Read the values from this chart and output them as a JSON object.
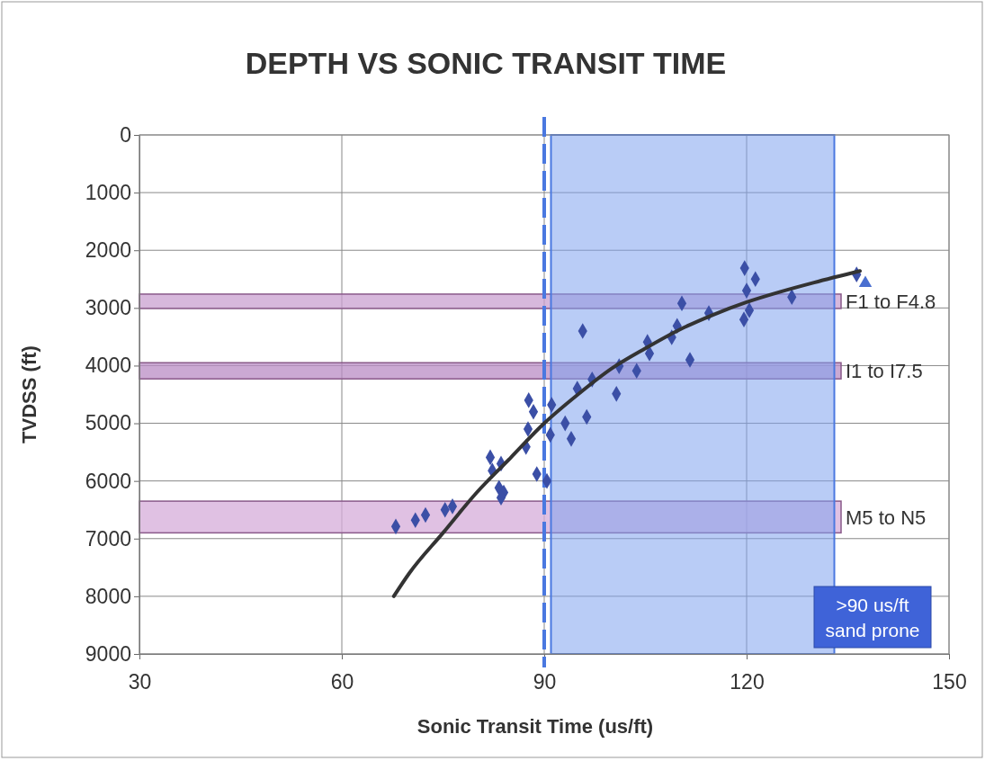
{
  "chart_data": {
    "type": "scatter",
    "title": "DEPTH VS SONIC TRANSIT TIME",
    "xlabel": "Sonic Transit Time (us/ft)",
    "ylabel": "TVDSS (ft)",
    "xlim": [
      30,
      150
    ],
    "xticks": [
      30,
      60,
      90,
      120,
      150
    ],
    "ylim": [
      9000,
      0
    ],
    "yticks": [
      0,
      1000,
      2000,
      3000,
      4000,
      5000,
      6000,
      7000,
      8000,
      9000
    ],
    "grid": true,
    "series": [
      {
        "marker": "diamond",
        "color": "#3b4fa6",
        "x": [
          68,
          70.9,
          72.4,
          75.3,
          76.4,
          82,
          83.6,
          82.3,
          83.3,
          84,
          83.6,
          87.3,
          88.9,
          90.4,
          87.7,
          88.4,
          91.1,
          87.6,
          90.9,
          93.1,
          94,
          96.3,
          94.9,
          97.1,
          100.7,
          95.7,
          101.1,
          103.7,
          105.3,
          105.6,
          108.9,
          109.7,
          111.6,
          110.4,
          114.4,
          119.7,
          121.3,
          120,
          120.4,
          119.6,
          126.7,
          136.3
        ],
        "values": [
          6790,
          6680,
          6590,
          6500,
          6440,
          5590,
          5700,
          5820,
          6120,
          6200,
          6290,
          5410,
          5880,
          6000,
          4600,
          4800,
          4680,
          5100,
          5200,
          5000,
          5270,
          4890,
          4400,
          4240,
          4490,
          3400,
          4010,
          4090,
          3590,
          3790,
          3510,
          3310,
          3900,
          2920,
          3090,
          2310,
          2500,
          2700,
          3040,
          3200,
          2810,
          2420
        ]
      },
      {
        "marker": "triangle",
        "color": "#4a6fd0",
        "x": [
          137.6
        ],
        "values": [
          2570
        ]
      },
      {
        "type": "line",
        "marker": "none",
        "line_style": "solid",
        "color": "#333333",
        "x": [
          67.7,
          70,
          75,
          80,
          85,
          90,
          95,
          100,
          105,
          110,
          115,
          120,
          125,
          130,
          136.8
        ],
        "values": [
          8000,
          7600,
          6900,
          6200,
          5600,
          5000,
          4500,
          4050,
          3700,
          3380,
          3120,
          2900,
          2720,
          2560,
          2360
        ]
      }
    ],
    "bands": [
      {
        "axis": "y",
        "from": 2760,
        "to": 3010,
        "label": "F1 to F4.8",
        "color": "#c9a0d0"
      },
      {
        "axis": "y",
        "from": 3950,
        "to": 4230,
        "label": "I1 to I7.5",
        "color": "#b98cc4"
      },
      {
        "axis": "y",
        "from": 6350,
        "to": 6900,
        "label": "M5 to N5",
        "color": "#d6acd9"
      },
      {
        "axis": "x",
        "from": 91,
        "to": 133,
        "label": null,
        "color": "#7fa3ee"
      }
    ],
    "ref_lines": [
      {
        "axis": "x",
        "value": 90,
        "label": null,
        "color": "#4a78e0",
        "line_style": "dashed"
      }
    ],
    "annotations": [
      ">90 us/ft sand prone"
    ]
  }
}
